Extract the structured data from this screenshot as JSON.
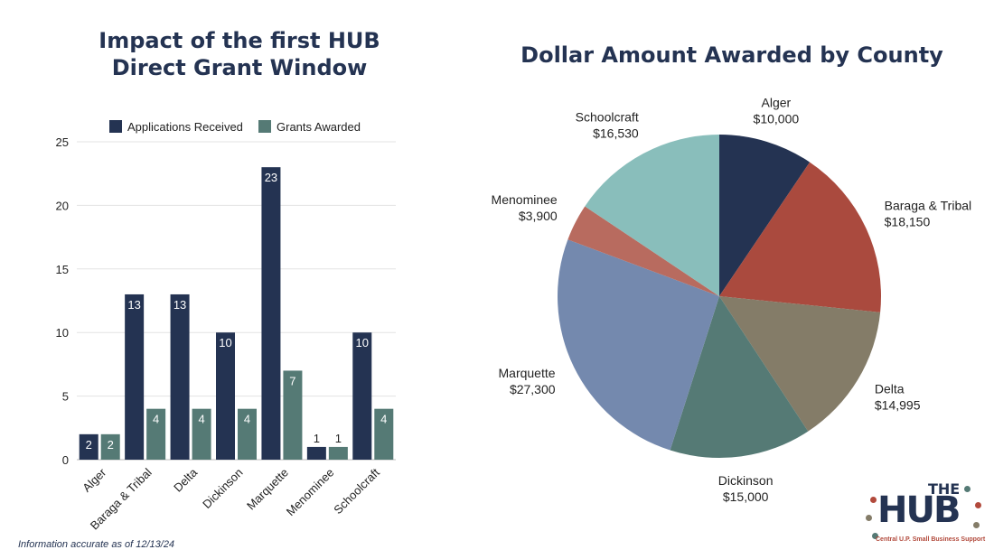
{
  "chart_data": [
    {
      "type": "bar",
      "title_lines": [
        "Impact of the first HUB",
        "Direct Grant Window"
      ],
      "categories": [
        "Alger",
        "Baraga & Tribal",
        "Delta",
        "Dickinson",
        "Marquette",
        "Menominee",
        "Schoolcraft"
      ],
      "series": [
        {
          "name": "Applications Received",
          "color": "#243352",
          "values": [
            2,
            13,
            13,
            10,
            23,
            1,
            10
          ]
        },
        {
          "name": "Grants Awarded",
          "color": "#557a75",
          "values": [
            2,
            4,
            4,
            4,
            7,
            1,
            4
          ]
        }
      ],
      "ylim": [
        0,
        25
      ],
      "yticks": [
        "0",
        "5",
        "10",
        "15",
        "20",
        "25"
      ],
      "grid": true,
      "legend_position": "top"
    },
    {
      "type": "pie",
      "title": "Dollar Amount Awarded by County",
      "slices": [
        {
          "label": "Alger",
          "value": 10000,
          "value_label": "$10,000",
          "color": "#243352"
        },
        {
          "label": "Baraga & Tribal",
          "value": 18150,
          "value_label": "$18,150",
          "color": "#aa4a3e"
        },
        {
          "label": "Delta",
          "value": 14995,
          "value_label": "$14,995",
          "color": "#847c68"
        },
        {
          "label": "Dickinson",
          "value": 15000,
          "value_label": "$15,000",
          "color": "#557a75"
        },
        {
          "label": "Marquette",
          "value": 27300,
          "value_label": "$27,300",
          "color": "#7489ae"
        },
        {
          "label": "Menominee",
          "value": 3900,
          "value_label": "$3,900",
          "color": "#b86b5f"
        },
        {
          "label": "Schoolcraft",
          "value": 16530,
          "value_label": "$16,530",
          "color": "#89bebb"
        }
      ]
    }
  ],
  "footnote": "Information accurate as of 12/13/24",
  "logo": {
    "the": "THE",
    "hub": "HUB",
    "tagline": "Central U.P. Small Business Support"
  }
}
